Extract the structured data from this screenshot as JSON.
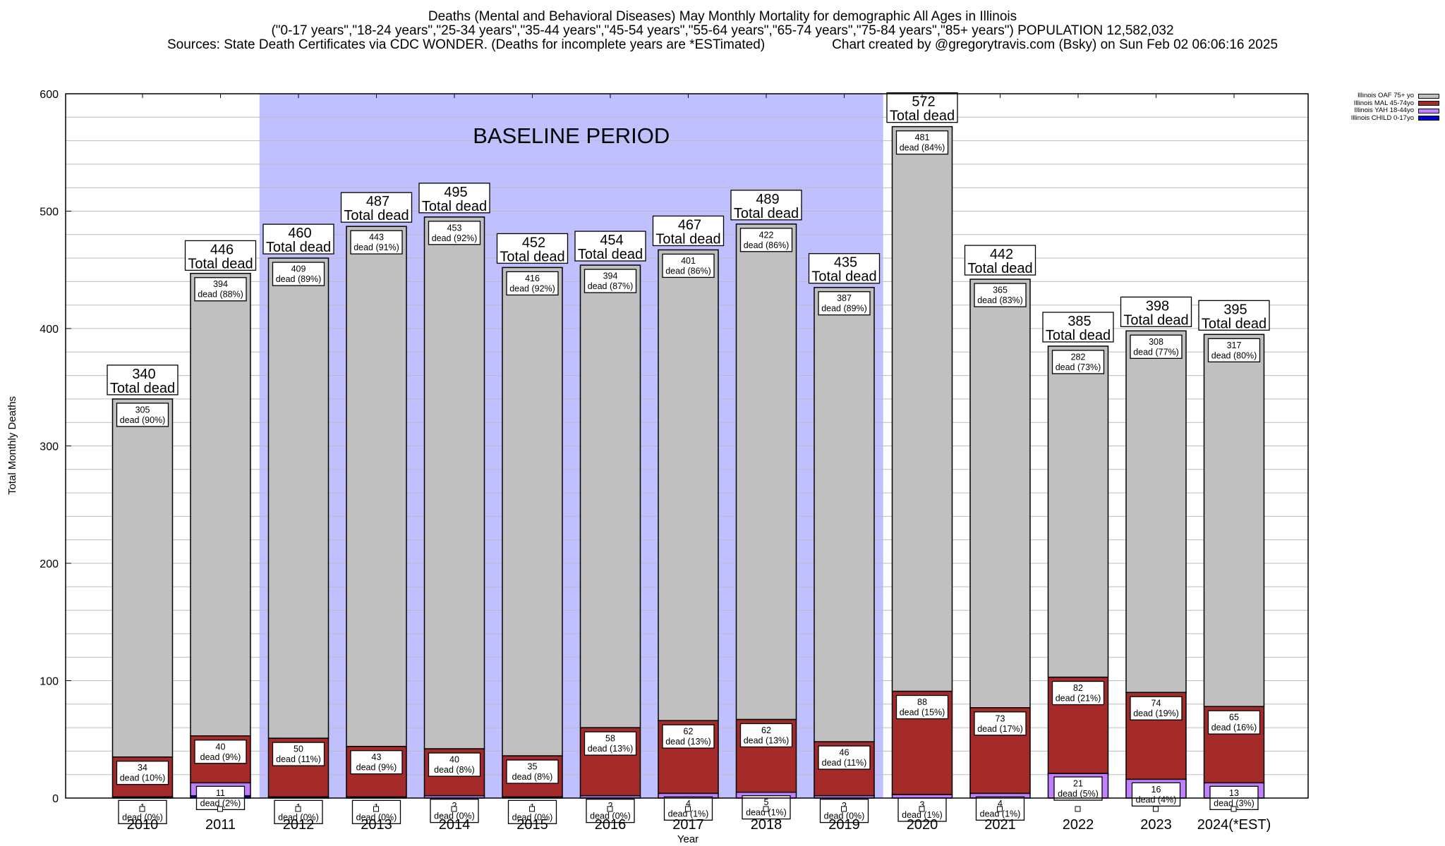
{
  "title": {
    "line1": "Deaths (Mental and Behavioral Diseases) May Monthly Mortality for demographic All Ages in Illinois",
    "line2": "(\"0-17 years\",\"18-24 years\",\"25-34 years\",\"35-44 years\",\"45-54 years\",\"55-64 years\",\"65-74 years\",\"75-84 years\",\"85+ years\") POPULATION 12,582,032",
    "line3_left": "Sources: State Death Certificates via CDC WONDER. (Deaths for incomplete years are *ESTimated)",
    "line3_right": "Chart created by @gregorytravis.com (Bsky) on Sun Feb 02 06:06:16 2025"
  },
  "legend": [
    {
      "label": "Illinois OAF 75+ yo",
      "color": "#c0c0c0"
    },
    {
      "label": "Illinois MAL 45-74yo",
      "color": "#a52a2a"
    },
    {
      "label": "Illinois YAH 18-44yo",
      "color": "#c080ff"
    },
    {
      "label": "Illinois CHILD 0-17yo",
      "color": "#0000cd"
    }
  ],
  "chart_data": {
    "type": "bar",
    "stacked": true,
    "title": "Deaths (Mental and Behavioral Diseases) May Monthly Mortality for demographic All Ages in Illinois",
    "xlabel": "Year",
    "ylabel": "Total Monthly Deaths",
    "ylim": [
      0,
      600
    ],
    "yticks": [
      0,
      100,
      200,
      300,
      400,
      500,
      600
    ],
    "minor_grid_step": 20,
    "grid": true,
    "legend_position": "top-right",
    "annotation": {
      "text": "BASELINE PERIOD",
      "span_categories": [
        "2012",
        "2019"
      ],
      "color": "#c0c0ff"
    },
    "total_label_suffix": "Total dead",
    "segment_label_prefix": "dead",
    "categories": [
      "2010",
      "2011",
      "2012",
      "2013",
      "2014",
      "2015",
      "2016",
      "2017",
      "2018",
      "2019",
      "2020",
      "2021",
      "2022",
      "2023",
      "2024(*EST)"
    ],
    "totals": [
      340,
      446,
      460,
      487,
      495,
      452,
      454,
      467,
      489,
      435,
      572,
      442,
      385,
      398,
      395
    ],
    "series": [
      {
        "name": "Illinois CHILD 0-17yo",
        "color": "#0000cd",
        "values": [
          0,
          2,
          0,
          0,
          0,
          0,
          0,
          0,
          0,
          0,
          0,
          0,
          0,
          0,
          0
        ],
        "labels": [],
        "pcts": []
      },
      {
        "name": "Illinois YAH 18-44yo",
        "color": "#c080ff",
        "values": [
          1,
          11,
          1,
          1,
          2,
          1,
          2,
          4,
          5,
          2,
          3,
          4,
          21,
          16,
          13
        ],
        "pcts": [
          "0%",
          "2%",
          "0%",
          "0%",
          "0%",
          "0%",
          "0%",
          "1%",
          "1%",
          "0%",
          "1%",
          "1%",
          "5%",
          "4%",
          "3%"
        ]
      },
      {
        "name": "Illinois MAL 45-74yo",
        "color": "#a52a2a",
        "values": [
          34,
          40,
          50,
          43,
          40,
          35,
          58,
          62,
          62,
          46,
          88,
          73,
          82,
          74,
          65
        ],
        "pcts": [
          "10%",
          "9%",
          "11%",
          "9%",
          "8%",
          "8%",
          "13%",
          "13%",
          "13%",
          "11%",
          "15%",
          "17%",
          "21%",
          "19%",
          "16%"
        ]
      },
      {
        "name": "Illinois OAF 75+ yo",
        "color": "#c0c0c0",
        "values": [
          305,
          394,
          409,
          443,
          453,
          416,
          394,
          401,
          422,
          387,
          481,
          365,
          282,
          308,
          317
        ],
        "pcts": [
          "90%",
          "88%",
          "89%",
          "91%",
          "92%",
          "92%",
          "87%",
          "86%",
          "86%",
          "89%",
          "84%",
          "83%",
          "73%",
          "77%",
          "80%"
        ]
      }
    ]
  }
}
